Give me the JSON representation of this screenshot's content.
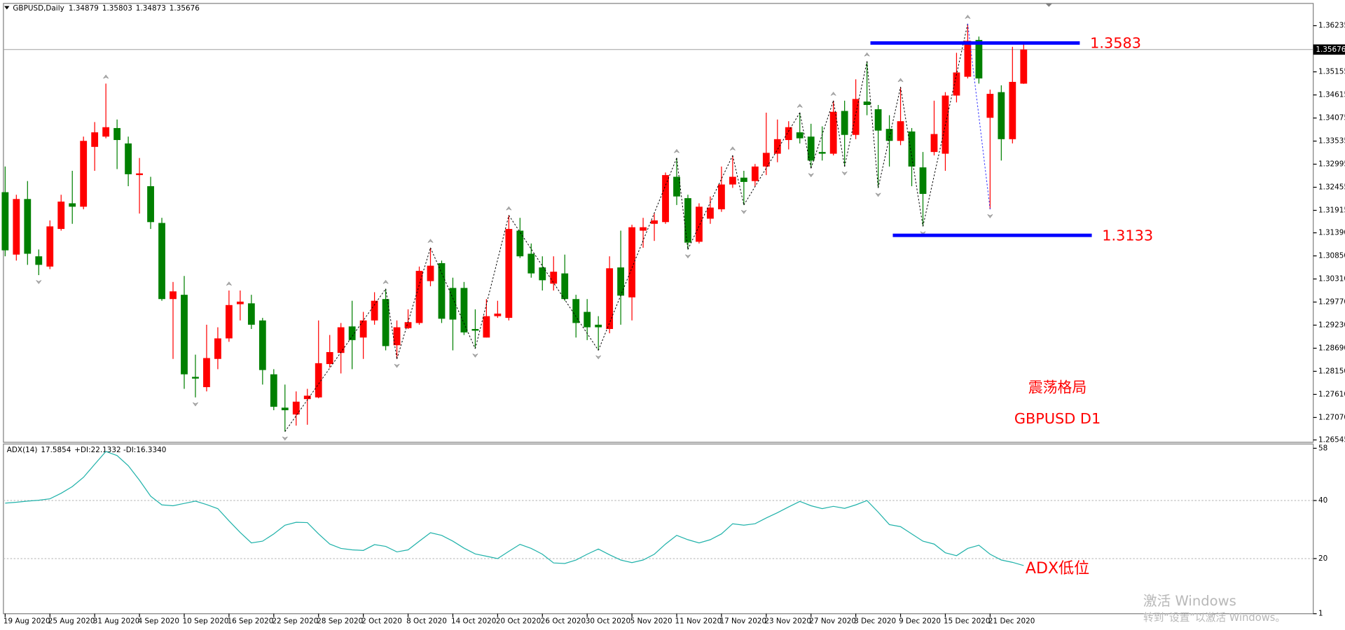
{
  "chart_data": [
    {
      "type": "candlestick",
      "title": "GBPUSD,Daily",
      "up_color": "#ff0000",
      "down_color": "#008000",
      "level_color": "#0000ff",
      "annotation_color": "#ff0000",
      "categories": [
        "19 Aug 2020",
        null,
        null,
        null,
        "25 Aug 2020",
        null,
        null,
        null,
        "31 Aug 2020",
        null,
        null,
        null,
        "4 Sep 2020",
        null,
        null,
        null,
        "10 Sep 2020",
        null,
        null,
        null,
        "16 Sep 2020",
        null,
        null,
        null,
        "22 Sep 2020",
        null,
        null,
        null,
        "28 Sep 2020",
        null,
        null,
        null,
        "2 Oct 2020",
        null,
        null,
        null,
        "8 Oct 2020",
        null,
        null,
        null,
        "14 Oct 2020",
        null,
        null,
        null,
        "20 Oct 2020",
        null,
        null,
        null,
        "26 Oct 2020",
        null,
        null,
        null,
        "30 Oct 2020",
        null,
        null,
        null,
        "5 Nov 2020",
        null,
        null,
        null,
        "11 Nov 2020",
        null,
        null,
        null,
        "17 Nov 2020",
        null,
        null,
        null,
        "23 Nov 2020",
        null,
        null,
        null,
        "27 Nov 2020",
        null,
        null,
        null,
        "3 Dec 2020",
        null,
        null,
        null,
        "9 Dec 2020",
        null,
        null,
        null,
        "15 Dec 2020",
        null,
        null,
        null,
        "21 Dec 2020",
        null,
        null,
        null
      ],
      "open": [
        1.3234,
        1.3088,
        1.3218,
        1.3084,
        1.306,
        1.3148,
        1.3208,
        1.32,
        1.334,
        1.3364,
        1.3384,
        1.3348,
        1.3274,
        1.3248,
        1.3162,
        1.2984,
        1.2994,
        1.2802,
        1.2778,
        1.2844,
        1.2892,
        1.2972,
        1.2974,
        1.2934,
        1.2808,
        1.273,
        1.2714,
        1.275,
        1.2754,
        1.2832,
        1.2858,
        1.292,
        1.2894,
        1.2934,
        1.2984,
        1.2876,
        1.2916,
        1.2928,
        1.3026,
        1.3068,
        1.301,
        1.301,
        1.2914,
        1.2894,
        1.2944,
        1.294,
        1.3144,
        1.309,
        1.3058,
        1.302,
        1.3044,
        1.2984,
        1.2954,
        1.2924,
        1.2914,
        1.3058,
        1.2988,
        1.3144,
        1.316,
        1.3164,
        1.327,
        1.322,
        1.3118,
        1.3172,
        1.3194,
        1.3252,
        1.3268,
        1.326,
        1.3294,
        1.3324,
        1.3356,
        1.3374,
        1.3364,
        1.3328,
        1.3324,
        1.3424,
        1.3368,
        1.3446,
        1.3428,
        1.3382,
        1.3354,
        1.3376,
        1.3292,
        1.3328,
        1.3324,
        1.346,
        1.3504,
        1.359,
        1.3408,
        1.3468,
        1.3358,
        1.34879
      ],
      "high": [
        1.3294,
        1.3228,
        1.326,
        1.31,
        1.3168,
        1.3228,
        1.3284,
        1.3364,
        1.3398,
        1.3488,
        1.3404,
        1.3364,
        1.3314,
        1.327,
        1.3174,
        1.3024,
        1.3038,
        1.2854,
        1.2924,
        1.2918,
        1.3004,
        1.3004,
        1.2994,
        1.294,
        1.282,
        1.2784,
        1.2768,
        1.2774,
        1.2934,
        1.29,
        1.2928,
        1.298,
        1.2954,
        1.3,
        1.3008,
        1.2934,
        1.296,
        1.306,
        1.3104,
        1.3074,
        1.3034,
        1.3024,
        1.296,
        1.2984,
        1.298,
        1.318,
        1.3174,
        1.3114,
        1.3084,
        1.3084,
        1.3088,
        1.2994,
        1.2984,
        1.2944,
        1.3084,
        1.3144,
        1.3158,
        1.3174,
        1.3184,
        1.328,
        1.3314,
        1.3228,
        1.3208,
        1.3224,
        1.3294,
        1.332,
        1.3284,
        1.33,
        1.342,
        1.3404,
        1.34,
        1.342,
        1.3394,
        1.3388,
        1.3448,
        1.3448,
        1.3498,
        1.354,
        1.3438,
        1.3414,
        1.348,
        1.3384,
        1.3328,
        1.3448,
        1.3468,
        1.356,
        1.3628,
        1.3598,
        1.3474,
        1.3484,
        1.3574,
        1.35803
      ],
      "low": [
        1.3084,
        1.3074,
        1.3064,
        1.304,
        1.3054,
        1.3144,
        1.316,
        1.3194,
        1.3284,
        1.336,
        1.3288,
        1.3248,
        1.3184,
        1.3148,
        1.298,
        1.2844,
        1.2774,
        1.2754,
        1.2768,
        1.282,
        1.2884,
        1.2934,
        1.2914,
        1.2784,
        1.2724,
        1.2674,
        1.2688,
        1.269,
        1.2752,
        1.2824,
        1.281,
        1.282,
        1.2844,
        1.2924,
        1.2864,
        1.2844,
        1.2914,
        1.2924,
        1.3014,
        1.2928,
        1.2864,
        1.29,
        1.2868,
        1.2894,
        1.294,
        1.2934,
        1.308,
        1.3034,
        1.3004,
        1.3004,
        1.298,
        1.2894,
        1.2888,
        1.2864,
        1.2904,
        1.2924,
        1.2934,
        1.3104,
        1.312,
        1.316,
        1.3204,
        1.31,
        1.3114,
        1.316,
        1.3188,
        1.3244,
        1.3204,
        1.3248,
        1.3274,
        1.3304,
        1.3334,
        1.3348,
        1.329,
        1.3308,
        1.332,
        1.3294,
        1.3358,
        1.3414,
        1.3244,
        1.3294,
        1.3344,
        1.3248,
        1.3154,
        1.332,
        1.3284,
        1.3444,
        1.35,
        1.3488,
        1.3194,
        1.3308,
        1.3348,
        1.34873
      ],
      "close": [
        1.3098,
        1.3218,
        1.309,
        1.3064,
        1.3154,
        1.3212,
        1.32,
        1.3354,
        1.3374,
        1.3386,
        1.3356,
        1.3276,
        1.3278,
        1.3164,
        1.2984,
        1.3002,
        1.2808,
        1.2798,
        1.2846,
        1.2892,
        1.297,
        1.2978,
        1.2924,
        1.2818,
        1.2732,
        1.2724,
        1.2744,
        1.2758,
        1.2834,
        1.286,
        1.2918,
        1.2888,
        1.2934,
        1.298,
        1.2874,
        1.2918,
        1.293,
        1.305,
        1.3062,
        1.2938,
        1.2936,
        1.2906,
        1.291,
        1.2944,
        1.295,
        1.3148,
        1.3084,
        1.3044,
        1.3028,
        1.3048,
        1.2984,
        1.2928,
        1.2918,
        1.2918,
        1.3056,
        1.2992,
        1.3152,
        1.3152,
        1.3168,
        1.3274,
        1.3224,
        1.3116,
        1.32,
        1.3198,
        1.3252,
        1.327,
        1.3258,
        1.3294,
        1.3326,
        1.3358,
        1.3386,
        1.336,
        1.3308,
        1.3324,
        1.3422,
        1.3368,
        1.3452,
        1.3438,
        1.3378,
        1.3354,
        1.34,
        1.3294,
        1.323,
        1.337,
        1.346,
        1.3514,
        1.3588,
        1.35,
        1.3464,
        1.3358,
        1.3492,
        1.35676
      ],
      "ylim": [
        1.2649,
        1.36735
      ],
      "yticks": [
        1.36235,
        1.35155,
        1.34615,
        1.34075,
        1.33535,
        1.32995,
        1.32455,
        1.31915,
        {
          "value": 1.3139,
          "label": "1.31390"
        },
        {
          "value": 1.3085,
          "label": "1.30850"
        },
        {
          "value": 1.3031,
          "label": "1.30310"
        },
        {
          "value": 1.2977,
          "label": "1.29770"
        },
        {
          "value": 1.2923,
          "label": "1.29230"
        },
        {
          "value": 1.2869,
          "label": "1.28690"
        },
        {
          "value": 1.2815,
          "label": "1.28150"
        },
        {
          "value": 1.2761,
          "label": "1.27610"
        },
        {
          "value": 1.2707,
          "label": "1.27070"
        },
        1.26545
      ],
      "levels": [
        1.3583,
        1.3133
      ],
      "annotations": [
        "震荡格局",
        "GBPUSD D1"
      ]
    },
    {
      "type": "line",
      "title": "ADX(14)",
      "di_text": "+DI:22.1332 -DI:16.3340",
      "color": "#20b2aa",
      "values": [
        39.1,
        39.4,
        39.8,
        40.1,
        40.6,
        42.5,
        44.8,
        48,
        52.5,
        56.9,
        55.5,
        52,
        47,
        41.5,
        38.5,
        38.2,
        39,
        39.8,
        38.6,
        37.2,
        33,
        29,
        25.4,
        26,
        28.5,
        31.5,
        32.5,
        32.4,
        28.5,
        25,
        23.5,
        23,
        22.8,
        24.8,
        24.2,
        22.3,
        23,
        26,
        28.9,
        28,
        26,
        23.6,
        21.6,
        20.8,
        20,
        22.5,
        24.9,
        23.5,
        21.5,
        18.5,
        18.3,
        19.5,
        21.5,
        23.3,
        21.3,
        19.5,
        18.6,
        19.5,
        21.5,
        25,
        28,
        26.5,
        25.4,
        26.5,
        28.5,
        32,
        31.5,
        32,
        34,
        35.8,
        37.8,
        39.7,
        38.2,
        37.2,
        38,
        37.3,
        38.5,
        40,
        36,
        31.7,
        31,
        28.5,
        26,
        25,
        22,
        21,
        23.5,
        24.6,
        21.5,
        19.5,
        18.7,
        17.5854
      ],
      "ylim": [
        1,
        58
      ],
      "yticks": [
        58,
        40,
        20,
        1
      ],
      "levels": [
        40,
        20
      ],
      "annotations": [
        "ADX低位"
      ]
    }
  ],
  "watermark": {
    "line1": "激活 Windows",
    "line2": "转到“设置”以激活 Windows。"
  }
}
